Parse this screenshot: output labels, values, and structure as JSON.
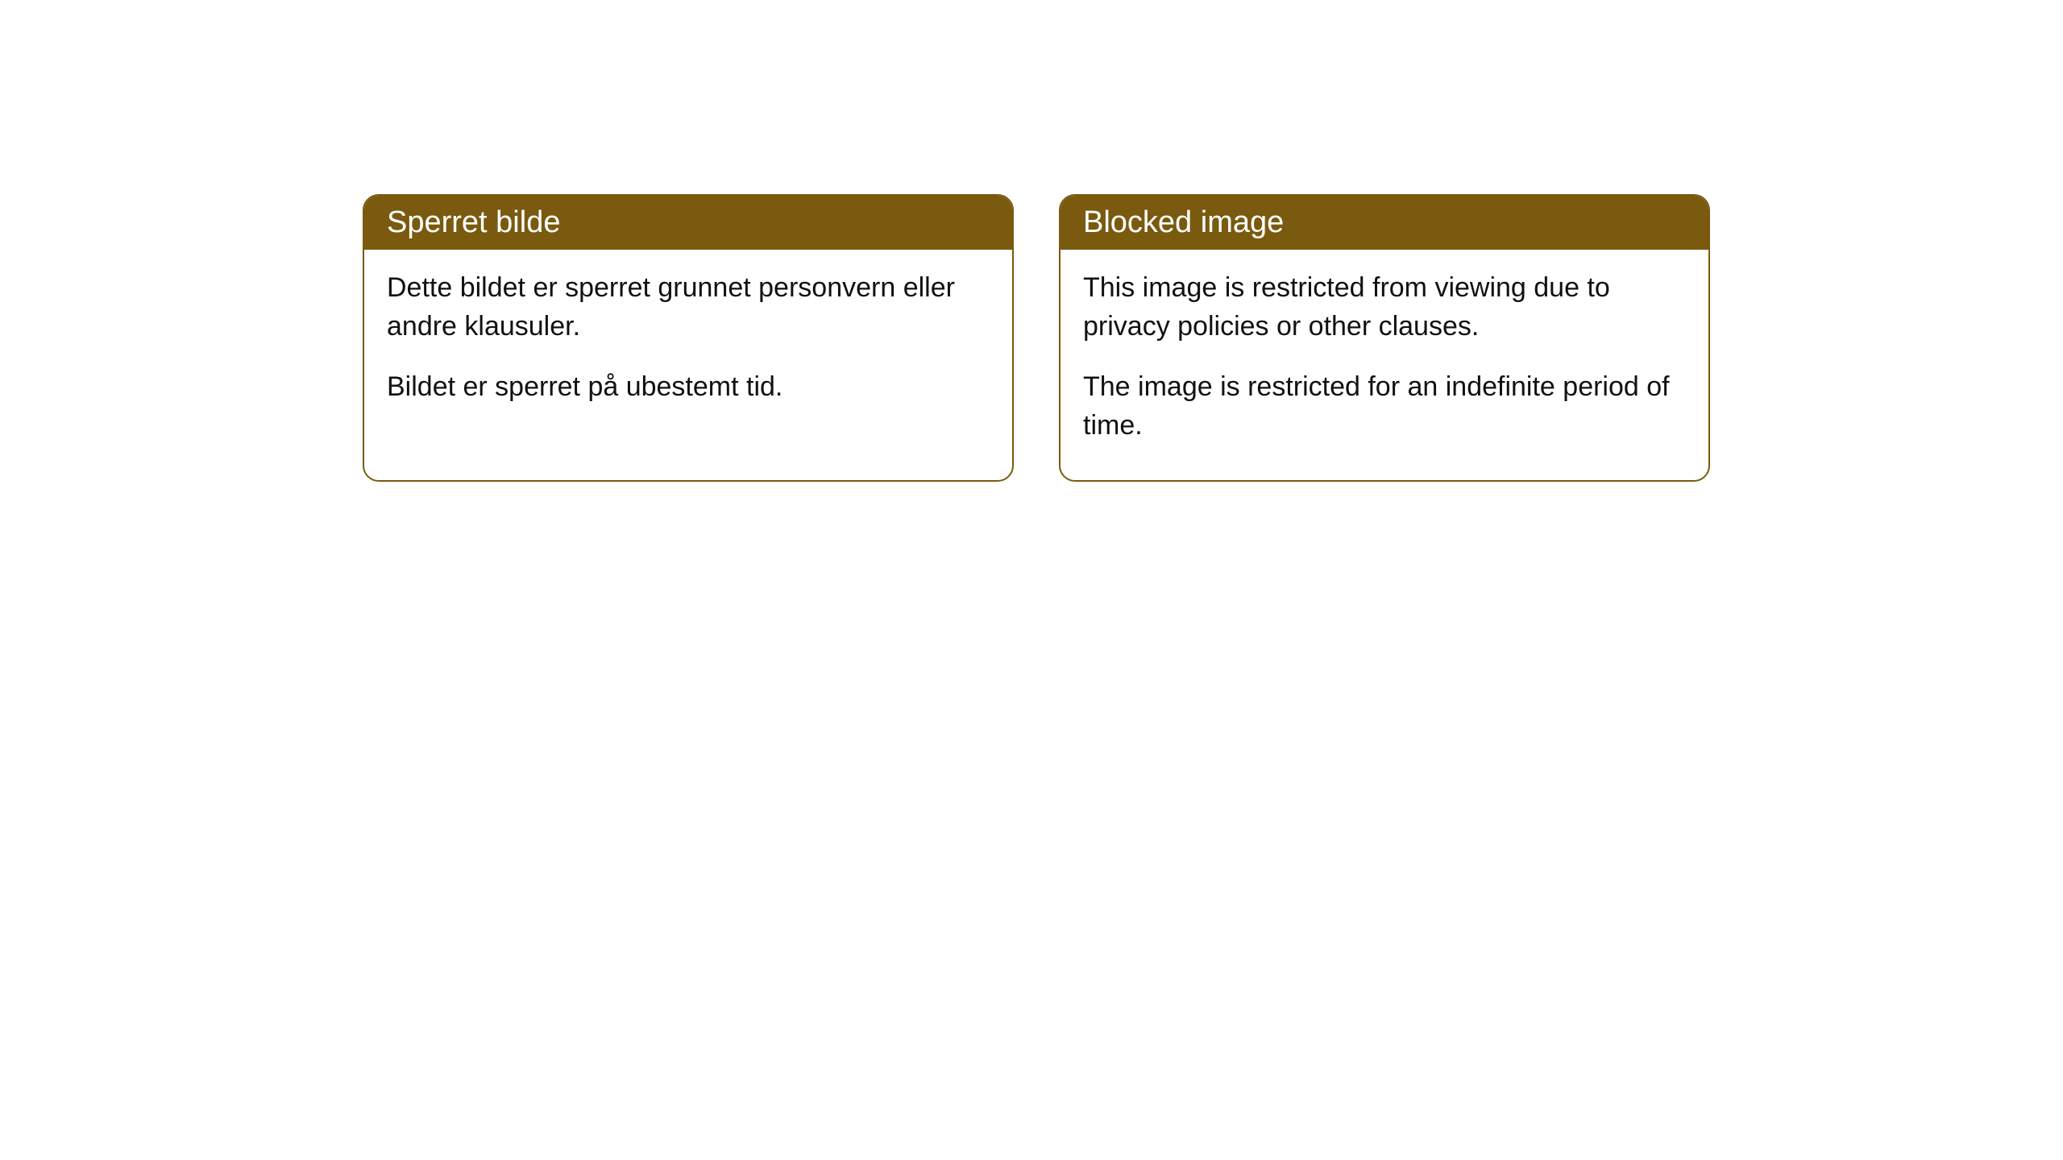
{
  "cards": [
    {
      "title": "Sperret bilde",
      "paragraph1": "Dette bildet er sperret grunnet personvern eller andre klausuler.",
      "paragraph2": "Bildet er sperret på ubestemt tid."
    },
    {
      "title": "Blocked image",
      "paragraph1": "This image is restricted from viewing due to privacy policies or other clauses.",
      "paragraph2": "The image is restricted for an indefinite period of time."
    }
  ],
  "colors": {
    "header_bg": "#7a5a0f",
    "header_text": "#ffffff",
    "body_bg": "#ffffff",
    "body_text": "#111111",
    "border": "#7a5a0f"
  }
}
